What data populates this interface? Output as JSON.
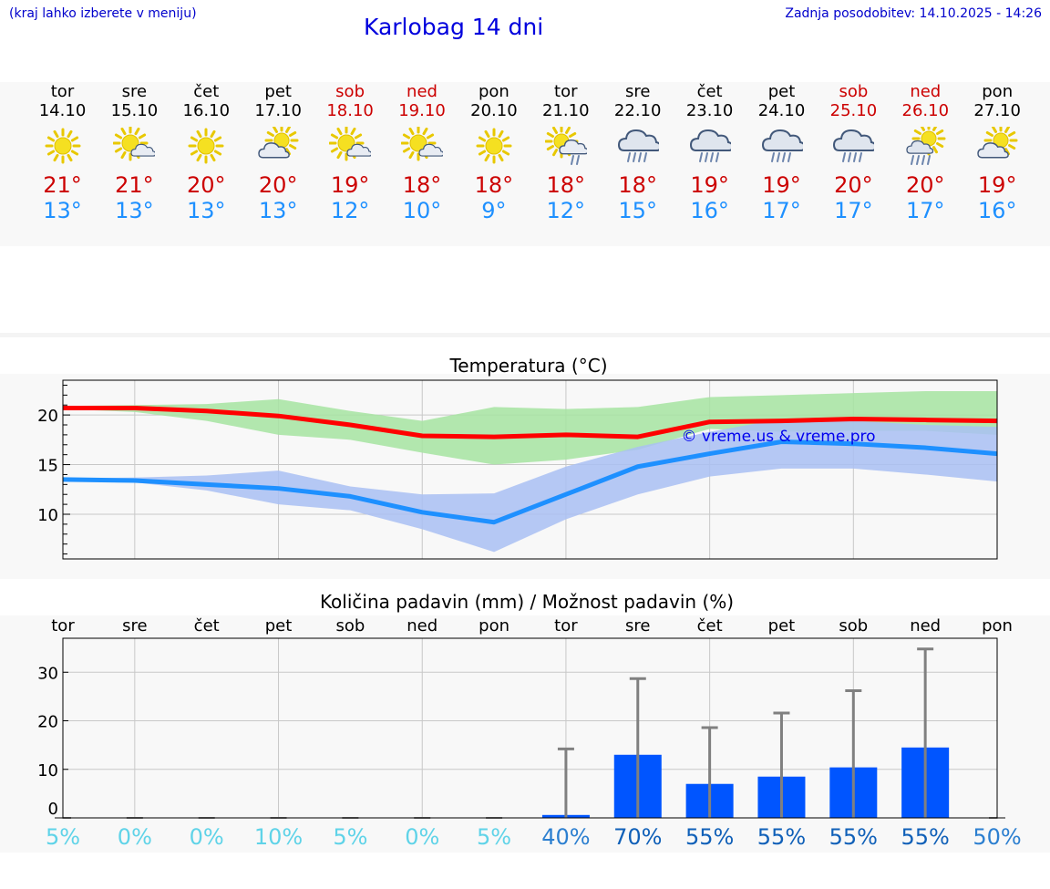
{
  "header": {
    "hint": "(kraj lahko izberete v meniju)",
    "title": "Karlobag 14 dni",
    "updated": "Zadnja posodobitev: 14.10.2025 - 14:26"
  },
  "days": [
    {
      "name": "tor",
      "date": "14.10",
      "weekend": false,
      "icon": "sun",
      "max": "21°",
      "min": "13°"
    },
    {
      "name": "sre",
      "date": "15.10",
      "weekend": false,
      "icon": "sun-small-cloud",
      "max": "21°",
      "min": "13°"
    },
    {
      "name": "čet",
      "date": "16.10",
      "weekend": false,
      "icon": "sun",
      "max": "20°",
      "min": "13°"
    },
    {
      "name": "pet",
      "date": "17.10",
      "weekend": false,
      "icon": "cloud-sun",
      "max": "20°",
      "min": "13°"
    },
    {
      "name": "sob",
      "date": "18.10",
      "weekend": true,
      "icon": "sun-small-cloud",
      "max": "19°",
      "min": "12°"
    },
    {
      "name": "ned",
      "date": "19.10",
      "weekend": true,
      "icon": "sun-small-cloud",
      "max": "18°",
      "min": "10°"
    },
    {
      "name": "pon",
      "date": "20.10",
      "weekend": false,
      "icon": "sun",
      "max": "18°",
      "min": "9°"
    },
    {
      "name": "tor",
      "date": "21.10",
      "weekend": false,
      "icon": "sun-cloud-light-rain",
      "max": "18°",
      "min": "12°"
    },
    {
      "name": "sre",
      "date": "22.10",
      "weekend": false,
      "icon": "cloud-rain",
      "max": "18°",
      "min": "15°"
    },
    {
      "name": "čet",
      "date": "23.10",
      "weekend": false,
      "icon": "cloud-rain",
      "max": "19°",
      "min": "16°"
    },
    {
      "name": "pet",
      "date": "24.10",
      "weekend": false,
      "icon": "cloud-rain",
      "max": "19°",
      "min": "17°"
    },
    {
      "name": "sob",
      "date": "25.10",
      "weekend": true,
      "icon": "cloud-rain",
      "max": "20°",
      "min": "17°"
    },
    {
      "name": "ned",
      "date": "26.10",
      "weekend": true,
      "icon": "sun-cloud-rain",
      "max": "20°",
      "min": "17°"
    },
    {
      "name": "pon",
      "date": "27.10",
      "weekend": false,
      "icon": "cloud-sun",
      "max": "19°",
      "min": "16°"
    }
  ],
  "colors": {
    "max": "#cc0000",
    "min": "#1e90ff",
    "maxLine": "#ff0000",
    "minLine": "#1e90ff",
    "maxBand": "#a6e4a1",
    "minBand": "#a9c0f3",
    "bar": "#0055ff",
    "whisker": "#808080",
    "link": "#0000ee"
  },
  "chart_data": [
    {
      "type": "line",
      "title": "Temperatura (°C)",
      "watermark": "© vreme.us & vreme.pro",
      "x": [
        0,
        1,
        2,
        3,
        4,
        5,
        6,
        7,
        8,
        9,
        10,
        11,
        12,
        13
      ],
      "ylim": [
        5.5,
        23.5
      ],
      "yticks": [
        10,
        15,
        20
      ],
      "ytick_labels": [
        "10",
        "15",
        "20"
      ],
      "grid": true,
      "series": [
        {
          "name": "max",
          "values": [
            20.7,
            20.7,
            20.4,
            19.9,
            19.0,
            17.9,
            17.8,
            18.0,
            17.8,
            19.3,
            19.4,
            19.6,
            19.5,
            19.4
          ],
          "band_low": [
            20.6,
            20.3,
            19.4,
            18.0,
            17.5,
            16.2,
            15.0,
            15.5,
            16.5,
            18.6,
            18.3,
            18.4,
            18.4,
            18.0
          ],
          "band_high": [
            20.9,
            21.0,
            21.1,
            21.6,
            20.4,
            19.4,
            20.8,
            20.6,
            20.8,
            21.8,
            22.0,
            22.2,
            22.4,
            22.4
          ]
        },
        {
          "name": "min",
          "values": [
            13.5,
            13.4,
            13.0,
            12.6,
            11.8,
            10.2,
            9.2,
            12.0,
            14.8,
            16.1,
            17.3,
            17.1,
            16.7,
            16.1
          ],
          "band_low": [
            13.4,
            13.2,
            12.4,
            11.0,
            10.4,
            8.5,
            6.2,
            9.5,
            12.0,
            13.8,
            14.6,
            14.6,
            14.0,
            13.3
          ],
          "band_high": [
            13.6,
            13.7,
            13.9,
            14.4,
            12.8,
            12.0,
            12.1,
            14.8,
            16.8,
            18.3,
            19.6,
            19.4,
            19.0,
            18.8
          ]
        }
      ]
    },
    {
      "type": "bar",
      "title": "Količina padavin (mm) / Možnost padavin (%)",
      "categories": [
        "tor",
        "sre",
        "čet",
        "pet",
        "sob",
        "ned",
        "pon",
        "tor",
        "sre",
        "čet",
        "pet",
        "sob",
        "ned",
        "pon"
      ],
      "ylim": [
        0,
        37
      ],
      "yticks": [
        0,
        10,
        20,
        30
      ],
      "ytick_labels": [
        "0",
        "10",
        "20",
        "30"
      ],
      "values": [
        0,
        0,
        0,
        0,
        0,
        0,
        0,
        0.6,
        13,
        7,
        8.5,
        10.4,
        14.5,
        0
      ],
      "error_high": [
        0,
        0,
        0,
        0,
        0,
        0,
        0,
        14.2,
        28.7,
        18.6,
        21.6,
        26.2,
        34.8,
        0
      ],
      "probability": [
        "5%",
        "0%",
        "0%",
        "10%",
        "5%",
        "0%",
        "5%",
        "40%",
        "70%",
        "55%",
        "55%",
        "55%",
        "55%",
        "50%"
      ],
      "probability_values": [
        5,
        0,
        0,
        10,
        5,
        0,
        5,
        40,
        70,
        55,
        55,
        55,
        55,
        50
      ]
    }
  ]
}
